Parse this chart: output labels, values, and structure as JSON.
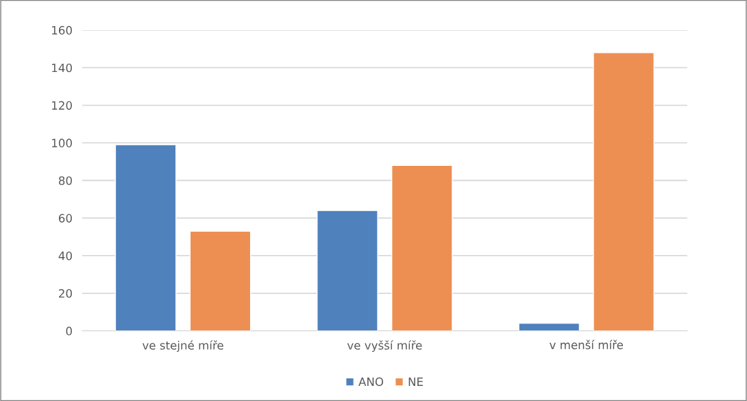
{
  "chart_data": {
    "type": "bar",
    "categories": [
      "ve stejné míře",
      "ve vyšší míře",
      "v menší míře"
    ],
    "series": [
      {
        "name": "ANO",
        "color": "#4f81bd",
        "values": [
          99,
          64,
          4
        ]
      },
      {
        "name": "NE",
        "color": "#ed8f52",
        "values": [
          53,
          88,
          148
        ]
      }
    ],
    "ylim": [
      0,
      160
    ],
    "yticks": [
      0,
      20,
      40,
      60,
      80,
      100,
      120,
      140,
      160
    ],
    "grid": "y",
    "legend": "bottom"
  }
}
